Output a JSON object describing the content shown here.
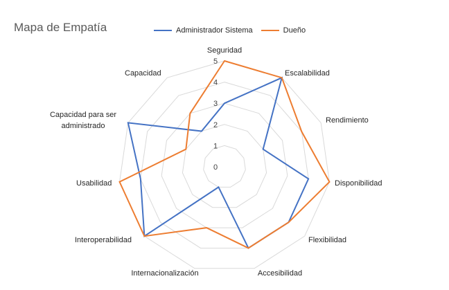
{
  "chart_data": {
    "type": "radar",
    "title": "Mapa de Empatía",
    "categories": [
      "Seguridad",
      "Escalabilidad",
      "Rendimiento",
      "Disponibilidad",
      "Flexibilidad",
      "Accesibilidad",
      "Internacionalización",
      "Interoperabilidad",
      "Usabilidad",
      "Capacidad para ser administrado",
      "Capacidad"
    ],
    "series": [
      {
        "name": "Administrador Sistema",
        "color": "#4472C4",
        "values": [
          3,
          5,
          2,
          4,
          4,
          4,
          1,
          5,
          4,
          5,
          2
        ]
      },
      {
        "name": "Dueño",
        "color": "#ED7D31",
        "values": [
          5,
          5,
          4,
          5,
          4,
          4,
          3,
          5,
          5,
          2,
          3
        ]
      }
    ],
    "radial_ticks": [
      "0",
      "1",
      "2",
      "3",
      "4",
      "5"
    ],
    "rlim": [
      0,
      5
    ],
    "grid": true,
    "legend_position": "top"
  }
}
